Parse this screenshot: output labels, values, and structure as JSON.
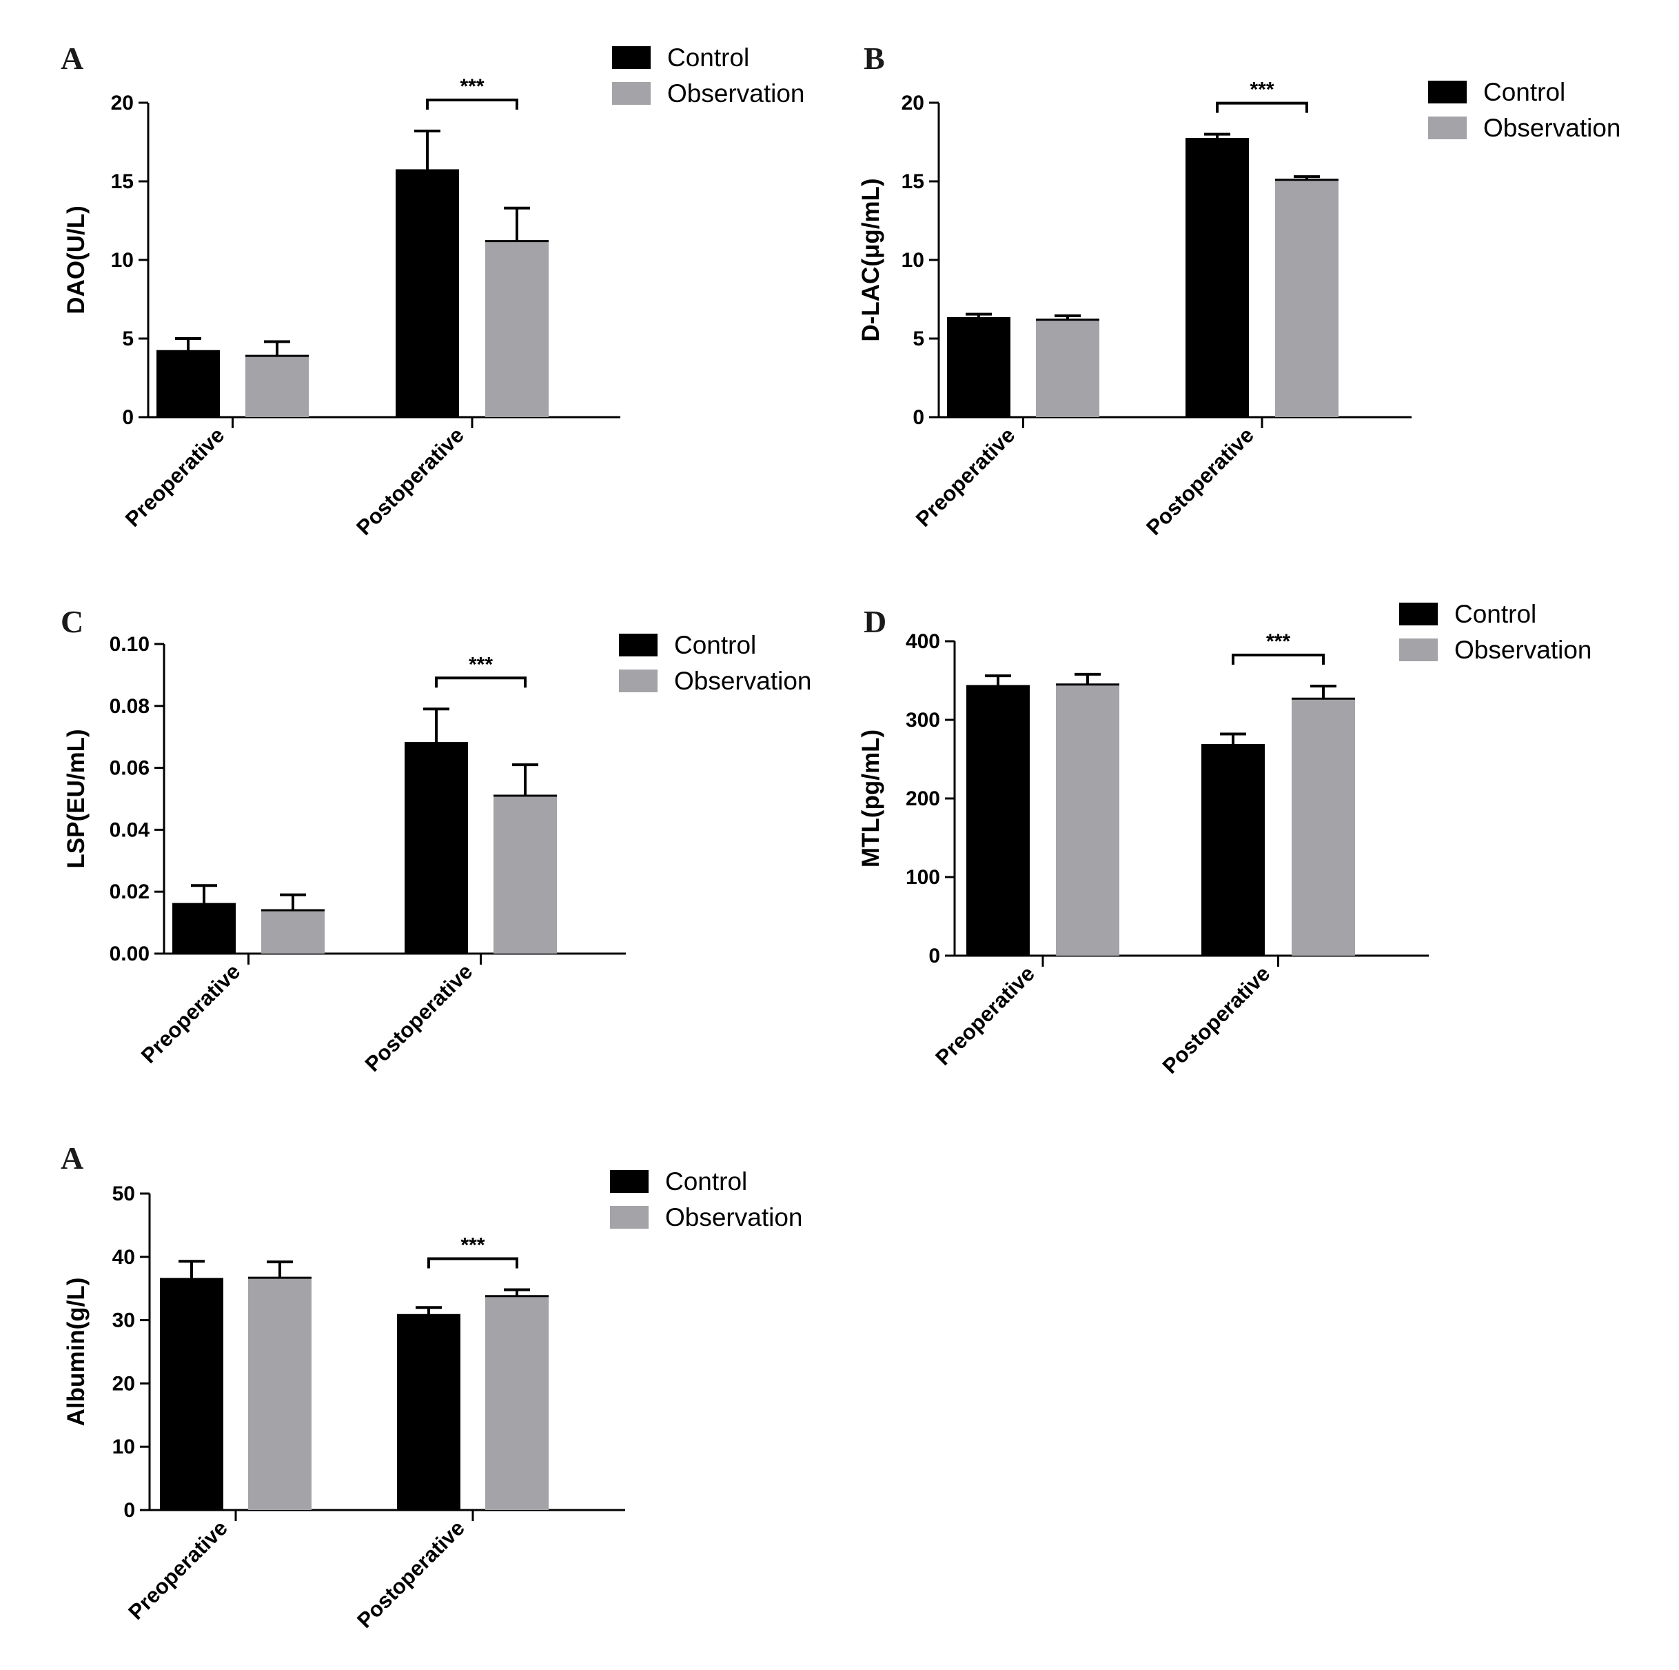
{
  "colors": {
    "control": "#000000",
    "observation": "#a3a3a8",
    "axis": "#000000"
  },
  "chart_data": [
    {
      "panel": "A",
      "type": "bar",
      "ylabel": "DAO(U/L)",
      "ylim": [
        0,
        20
      ],
      "yticks": [
        "0",
        "5",
        "10",
        "15",
        "20"
      ],
      "categories": [
        "Preoperative",
        "Postoperative"
      ],
      "series": [
        {
          "name": "Control",
          "values": [
            4.2,
            15.7
          ],
          "errors": [
            0.8,
            2.5
          ]
        },
        {
          "name": "Observation",
          "values": [
            3.9,
            11.2
          ],
          "errors": [
            0.9,
            2.1
          ]
        }
      ],
      "significance": [
        {
          "category": "Postoperative",
          "label": "***"
        }
      ],
      "legend": [
        "Control",
        "Observation"
      ]
    },
    {
      "panel": "B",
      "type": "bar",
      "ylabel": "D-LAC(μg/mL)",
      "ylim": [
        0,
        20
      ],
      "yticks": [
        "0",
        "5",
        "10",
        "15",
        "20"
      ],
      "categories": [
        "Preoperative",
        "Postoperative"
      ],
      "series": [
        {
          "name": "Control",
          "values": [
            6.3,
            17.7
          ],
          "errors": [
            0.25,
            0.3
          ]
        },
        {
          "name": "Observation",
          "values": [
            6.2,
            15.1
          ],
          "errors": [
            0.25,
            0.2
          ]
        }
      ],
      "significance": [
        {
          "category": "Postoperative",
          "label": "***"
        }
      ],
      "legend": [
        "Control",
        "Observation"
      ]
    },
    {
      "panel": "C",
      "type": "bar",
      "ylabel": "LSP(EU/mL)",
      "ylim": [
        0,
        0.1
      ],
      "yticks": [
        "0.00",
        "0.02",
        "0.04",
        "0.06",
        "0.08",
        "0.10"
      ],
      "categories": [
        "Preoperative",
        "Postoperative"
      ],
      "series": [
        {
          "name": "Control",
          "values": [
            0.016,
            0.068
          ],
          "errors": [
            0.006,
            0.011
          ]
        },
        {
          "name": "Observation",
          "values": [
            0.014,
            0.051
          ],
          "errors": [
            0.005,
            0.01
          ]
        }
      ],
      "significance": [
        {
          "category": "Postoperative",
          "label": "***"
        }
      ],
      "legend": [
        "Control",
        "Observation"
      ]
    },
    {
      "panel": "D",
      "type": "bar",
      "ylabel": "MTL(pg/mL)",
      "ylim": [
        0,
        400
      ],
      "yticks": [
        "0",
        "100",
        "200",
        "300",
        "400"
      ],
      "categories": [
        "Preoperative",
        "Postoperative"
      ],
      "series": [
        {
          "name": "Control",
          "values": [
            343,
            268
          ],
          "errors": [
            13,
            14
          ]
        },
        {
          "name": "Observation",
          "values": [
            345,
            327
          ],
          "errors": [
            13,
            16
          ]
        }
      ],
      "significance": [
        {
          "category": "Postoperative",
          "label": "***"
        }
      ],
      "legend": [
        "Control",
        "Observation"
      ]
    },
    {
      "panel": "A",
      "type": "bar",
      "ylabel": "Albumin(g/L)",
      "ylim": [
        0,
        50
      ],
      "yticks": [
        "0",
        "10",
        "20",
        "30",
        "40",
        "50"
      ],
      "categories": [
        "Preoperative",
        "Postoperative"
      ],
      "series": [
        {
          "name": "Control",
          "values": [
            36.5,
            30.8
          ],
          "errors": [
            2.8,
            1.2
          ]
        },
        {
          "name": "Observation",
          "values": [
            36.7,
            33.8
          ],
          "errors": [
            2.5,
            1.0
          ]
        }
      ],
      "significance": [
        {
          "category": "Postoperative",
          "label": "***"
        }
      ],
      "legend": [
        "Control",
        "Observation"
      ]
    }
  ]
}
